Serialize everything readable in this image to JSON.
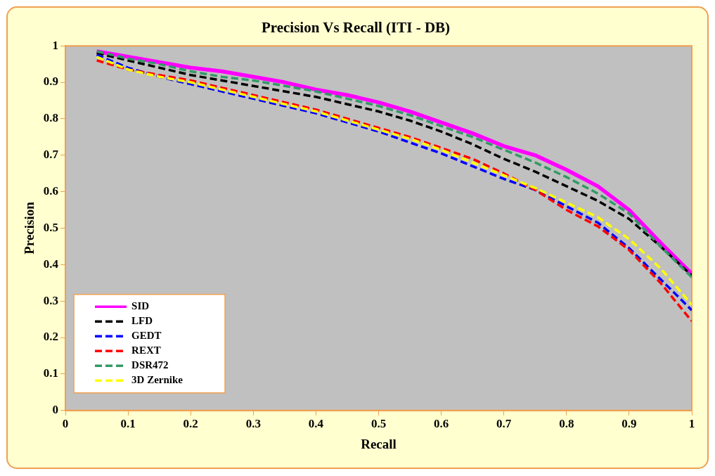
{
  "chart_data": {
    "type": "line",
    "title": "Precision Vs Recall (ITI - DB)",
    "xlabel": "Recall",
    "ylabel": "Precision",
    "x": [
      0.05,
      0.1,
      0.15,
      0.2,
      0.25,
      0.3,
      0.35,
      0.4,
      0.45,
      0.5,
      0.55,
      0.6,
      0.65,
      0.7,
      0.75,
      0.8,
      0.85,
      0.9,
      0.95,
      1.0
    ],
    "xlim": [
      0,
      1
    ],
    "xticks": [
      0,
      0.1,
      0.2,
      0.3,
      0.4,
      0.5,
      0.6,
      0.7,
      0.8,
      0.9,
      1
    ],
    "ylim": [
      0,
      1
    ],
    "yticks": [
      0,
      0.1,
      0.2,
      0.3,
      0.4,
      0.5,
      0.6,
      0.7,
      0.8,
      0.9,
      1
    ],
    "grid": false,
    "legend": "bottom left",
    "marker": "none",
    "series": [
      {
        "name": "SID",
        "color": "#ff00ff",
        "line_style": "solid",
        "values": [
          0.985,
          0.97,
          0.955,
          0.94,
          0.93,
          0.915,
          0.9,
          0.88,
          0.865,
          0.845,
          0.82,
          0.79,
          0.76,
          0.725,
          0.7,
          0.66,
          0.615,
          0.55,
          0.46,
          0.375
        ]
      },
      {
        "name": "LFD",
        "color": "#000000",
        "line_style": "dashed",
        "values": [
          0.98,
          0.96,
          0.94,
          0.92,
          0.905,
          0.89,
          0.875,
          0.86,
          0.84,
          0.82,
          0.795,
          0.765,
          0.73,
          0.69,
          0.655,
          0.615,
          0.575,
          0.525,
          0.45,
          0.37
        ]
      },
      {
        "name": "GEDT",
        "color": "#0000ff",
        "line_style": "dashed",
        "values": [
          0.975,
          0.94,
          0.915,
          0.895,
          0.875,
          0.855,
          0.835,
          0.815,
          0.79,
          0.765,
          0.735,
          0.705,
          0.67,
          0.635,
          0.605,
          0.56,
          0.515,
          0.445,
          0.36,
          0.275
        ]
      },
      {
        "name": "REXT",
        "color": "#ff0000",
        "line_style": "dashed",
        "values": [
          0.96,
          0.935,
          0.92,
          0.905,
          0.885,
          0.865,
          0.845,
          0.825,
          0.8,
          0.775,
          0.75,
          0.72,
          0.69,
          0.65,
          0.605,
          0.55,
          0.505,
          0.44,
          0.35,
          0.245
        ]
      },
      {
        "name": "DSR472",
        "color": "#339966",
        "line_style": "dashed",
        "values": [
          0.985,
          0.965,
          0.95,
          0.93,
          0.915,
          0.905,
          0.89,
          0.875,
          0.855,
          0.835,
          0.81,
          0.78,
          0.75,
          0.715,
          0.68,
          0.64,
          0.595,
          0.54,
          0.45,
          0.365
        ]
      },
      {
        "name": "3D Zernike",
        "color": "#ffff00",
        "line_style": "dashed",
        "values": [
          0.97,
          0.935,
          0.915,
          0.9,
          0.88,
          0.86,
          0.84,
          0.82,
          0.795,
          0.77,
          0.745,
          0.715,
          0.68,
          0.645,
          0.61,
          0.57,
          0.53,
          0.47,
          0.39,
          0.29
        ]
      }
    ]
  }
}
